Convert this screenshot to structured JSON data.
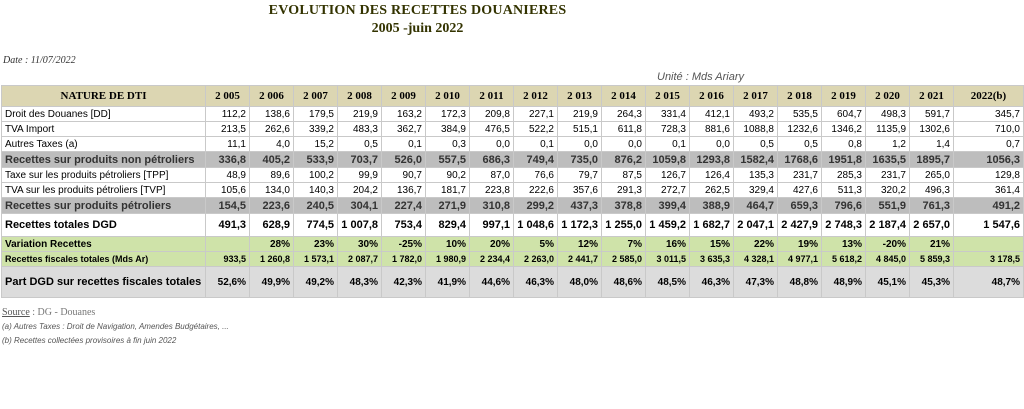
{
  "title_line1": "EVOLUTION DES RECETTES DOUANIERES",
  "title_line2": "2005 -juin 2022",
  "date": "Date : 11/07/2022",
  "unit": "Unité : Mds Ariary",
  "table": {
    "header": [
      "NATURE DE DTI",
      "2 005",
      "2 006",
      "2 007",
      "2 008",
      "2 009",
      "2 010",
      "2 011",
      "2 012",
      "2 013",
      "2 014",
      "2 015",
      "2 016",
      "2 017",
      "2 018",
      "2 019",
      "2 020",
      "2 021",
      "2022(b)"
    ],
    "rows": [
      {
        "style": "plain",
        "label": "Droit des Douanes [DD]",
        "values": [
          "112,2",
          "138,6",
          "179,5",
          "219,9",
          "163,2",
          "172,3",
          "209,8",
          "227,1",
          "219,9",
          "264,3",
          "331,4",
          "412,1",
          "493,2",
          "535,5",
          "604,7",
          "498,3",
          "591,7",
          "345,7"
        ]
      },
      {
        "style": "plain",
        "label": "TVA Import",
        "values": [
          "213,5",
          "262,6",
          "339,2",
          "483,3",
          "362,7",
          "384,9",
          "476,5",
          "522,2",
          "515,1",
          "611,8",
          "728,3",
          "881,6",
          "1088,8",
          "1232,6",
          "1346,2",
          "1135,9",
          "1302,6",
          "710,0"
        ]
      },
      {
        "style": "plain",
        "label": "Autres Taxes (a)",
        "values": [
          "11,1",
          "4,0",
          "15,2",
          "0,5",
          "0,1",
          "0,3",
          "0,0",
          "0,1",
          "0,0",
          "0,0",
          "0,1",
          "0,0",
          "0,5",
          "0,5",
          "0,8",
          "1,2",
          "1,4",
          "0,7"
        ]
      },
      {
        "style": "grey",
        "label": "Recettes sur produits non pétroliers",
        "values": [
          "336,8",
          "405,2",
          "533,9",
          "703,7",
          "526,0",
          "557,5",
          "686,3",
          "749,4",
          "735,0",
          "876,2",
          "1059,8",
          "1293,8",
          "1582,4",
          "1768,6",
          "1951,8",
          "1635,5",
          "1895,7",
          "1056,3"
        ]
      },
      {
        "style": "plain",
        "label": "Taxe sur les produits pétroliers [TPP]",
        "values": [
          "48,9",
          "89,6",
          "100,2",
          "99,9",
          "90,7",
          "90,2",
          "87,0",
          "76,6",
          "79,7",
          "87,5",
          "126,7",
          "126,4",
          "135,3",
          "231,7",
          "285,3",
          "231,7",
          "265,0",
          "129,8"
        ]
      },
      {
        "style": "plain",
        "label": "TVA sur les produits pétroliers [TVP]",
        "values": [
          "105,6",
          "134,0",
          "140,3",
          "204,2",
          "136,7",
          "181,7",
          "223,8",
          "222,6",
          "357,6",
          "291,3",
          "272,7",
          "262,5",
          "329,4",
          "427,6",
          "511,3",
          "320,2",
          "496,3",
          "361,4"
        ]
      },
      {
        "style": "grey",
        "label": "Recettes sur produits pétroliers",
        "values": [
          "154,5",
          "223,6",
          "240,5",
          "304,1",
          "227,4",
          "271,9",
          "310,8",
          "299,2",
          "437,3",
          "378,8",
          "399,4",
          "388,9",
          "464,7",
          "659,3",
          "796,6",
          "551,9",
          "761,3",
          "491,2"
        ]
      },
      {
        "style": "bold",
        "label": "Recettes totales DGD",
        "values": [
          "491,3",
          "628,9",
          "774,5",
          "1 007,8",
          "753,4",
          "829,4",
          "997,1",
          "1 048,6",
          "1 172,3",
          "1 255,0",
          "1 459,2",
          "1 682,7",
          "2 047,1",
          "2 427,9",
          "2 748,3",
          "2 187,4",
          "2 657,0",
          "1 547,6"
        ]
      },
      {
        "style": "green",
        "label": "Variation Recettes",
        "values": [
          "",
          "28%",
          "23%",
          "30%",
          "-25%",
          "10%",
          "20%",
          "5%",
          "12%",
          "7%",
          "16%",
          "15%",
          "22%",
          "19%",
          "13%",
          "-20%",
          "21%",
          ""
        ]
      },
      {
        "style": "green2",
        "label": "Recettes fiscales totales (Mds Ar)",
        "values": [
          "933,5",
          "1 260,8",
          "1 573,1",
          "2 087,7",
          "1 782,0",
          "1 980,9",
          "2 234,4",
          "2 263,0",
          "2 441,7",
          "2 585,0",
          "3 011,5",
          "3 635,3",
          "4 328,1",
          "4 977,1",
          "5 618,2",
          "4 845,0",
          "5 859,3",
          "3 178,5"
        ]
      },
      {
        "style": "part",
        "label": "Part DGD sur recettes fiscales totales",
        "values": [
          "52,6%",
          "49,9%",
          "49,2%",
          "48,3%",
          "42,3%",
          "41,9%",
          "44,6%",
          "46,3%",
          "48,0%",
          "48,6%",
          "48,5%",
          "46,3%",
          "47,3%",
          "48,8%",
          "48,9%",
          "45,1%",
          "45,3%",
          "48,7%"
        ]
      }
    ]
  },
  "notes": {
    "source_label": "Source",
    "source_value": " : DG - Douanes",
    "note_a": "(a) Autres Taxes : Droit de Navigation, Amendes Budgétaires, ...",
    "note_b": "(b) Recettes collectées provisoires à fin juin 2022"
  }
}
